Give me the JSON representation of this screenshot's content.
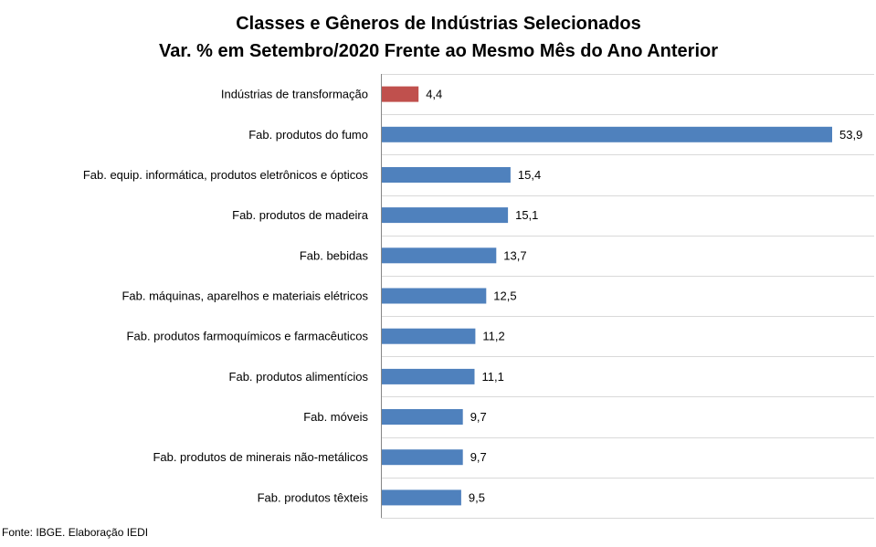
{
  "chart_data": {
    "type": "bar",
    "orientation": "horizontal",
    "title": "Classes e Gêneros de Indústrias Selecionados",
    "subtitle": "Var. % em Setembro/2020 Frente ao Mesmo Mês do Ano Anterior",
    "xlabel": "",
    "ylabel": "",
    "categories": [
      "Indústrias de transformação",
      "Fab. produtos do fumo",
      "Fab. equip. informática, produtos eletrônicos e ópticos",
      "Fab. produtos de madeira",
      "Fab. bebidas",
      "Fab. máquinas, aparelhos e materiais elétricos",
      "Fab. produtos farmoquímicos e farmacêuticos",
      "Fab. produtos alimentícios",
      "Fab. móveis",
      "Fab. produtos de minerais não-metálicos",
      "Fab. produtos têxteis"
    ],
    "values": [
      4.4,
      53.9,
      15.4,
      15.1,
      13.7,
      12.5,
      11.2,
      11.1,
      9.7,
      9.7,
      9.5
    ],
    "value_labels": [
      "4,4",
      "53,9",
      "15,4",
      "15,1",
      "13,7",
      "12,5",
      "11,2",
      "11,1",
      "9,7",
      "9,7",
      "9,5"
    ],
    "colors": [
      "#C0504D",
      "#4F81BD",
      "#4F81BD",
      "#4F81BD",
      "#4F81BD",
      "#4F81BD",
      "#4F81BD",
      "#4F81BD",
      "#4F81BD",
      "#4F81BD",
      "#4F81BD"
    ],
    "xlim": [
      0,
      54
    ],
    "grid": true,
    "legend": "none",
    "source": "Fonte: IBGE. Elaboração IEDI"
  }
}
